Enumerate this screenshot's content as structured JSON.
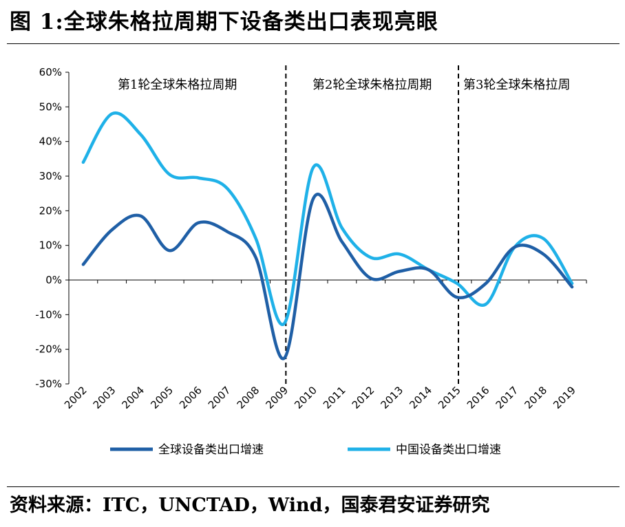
{
  "title": "图 1:全球朱格拉周期下设备类出口表现亮眼",
  "source": "资料来源：ITC，UNCTAD，Wind，国泰君安证券研究",
  "chart_data": {
    "type": "line",
    "x": [
      "2002",
      "2003",
      "2004",
      "2005",
      "2006",
      "2007",
      "2008",
      "2009",
      "2010",
      "2011",
      "2012",
      "2013",
      "2014",
      "2015",
      "2016",
      "2017",
      "2018",
      "2019"
    ],
    "ylim": [
      -30,
      60
    ],
    "yticks": [
      "60%",
      "50%",
      "40%",
      "30%",
      "20%",
      "10%",
      "0%",
      "-10%",
      "-20%",
      "-30%"
    ],
    "ytick_values": [
      60,
      50,
      40,
      30,
      20,
      10,
      0,
      -10,
      -20,
      -30
    ],
    "series": [
      {
        "name": "全球设备类出口增速",
        "color": "#1f5fa6",
        "values": [
          4.5,
          14.5,
          18.5,
          8.5,
          16.5,
          14.0,
          6.5,
          -22.5,
          23.5,
          11.0,
          0.5,
          2.5,
          3.0,
          -5.0,
          -1.0,
          9.5,
          7.5,
          -2.0
        ]
      },
      {
        "name": "中国设备类出口增速",
        "color": "#1fb1e8",
        "values": [
          34.0,
          48.0,
          42.0,
          30.5,
          29.5,
          26.5,
          12.0,
          -12.5,
          32.5,
          15.0,
          6.5,
          7.5,
          3.0,
          -1.0,
          -7.0,
          9.5,
          12.0,
          -1.0
        ]
      }
    ],
    "phases": [
      "第1轮全球朱格拉周期",
      "第2轮全球朱格拉周期",
      "第3轮全球朱格拉周"
    ],
    "dividers": [
      "2009",
      "2015"
    ]
  }
}
